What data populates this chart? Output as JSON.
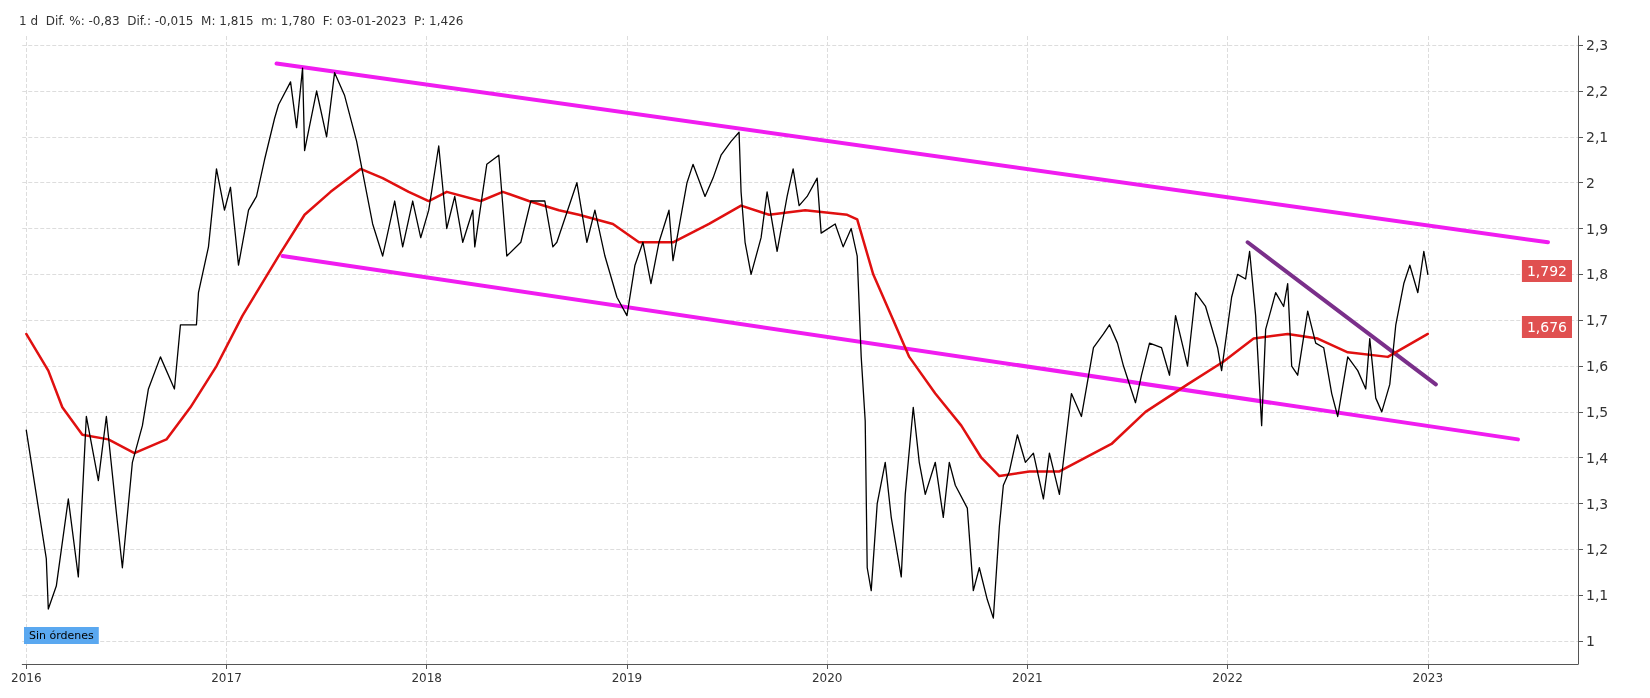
{
  "chart_data": {
    "type": "line",
    "title": "1 d  Dif. %: -0,83  Dif.: -0,015  M: 1,815  m: 1,780  F: 03-01-2023  P: 1,426",
    "xlim": [
      2015.98,
      2023.75
    ],
    "xticks": [
      2016,
      2017,
      2018,
      2019,
      2020,
      2021,
      2022,
      2023
    ],
    "ylim": [
      0.95,
      2.32
    ],
    "yticks": [
      {
        "value": 1,
        "label": "1"
      },
      {
        "value": 1.1,
        "label": "1,1"
      },
      {
        "value": 1.2,
        "label": "1,2"
      },
      {
        "value": 1.3,
        "label": "1,3"
      },
      {
        "value": 1.4,
        "label": "1,4"
      },
      {
        "value": 1.5,
        "label": "1,5"
      },
      {
        "value": 1.6,
        "label": "1,6"
      },
      {
        "value": 1.7,
        "label": "1,7"
      },
      {
        "value": 1.8,
        "label": "1,8"
      },
      {
        "value": 1.9,
        "label": "1,9"
      },
      {
        "value": 2,
        "label": "2"
      },
      {
        "value": 2.1,
        "label": "2,1"
      },
      {
        "value": 2.2,
        "label": "2,2"
      },
      {
        "value": 2.3,
        "label": "2,3"
      }
    ],
    "grid": true,
    "marker": "none",
    "line_style": "solid",
    "annotations": [
      "Sin órdenes",
      "1,792",
      "1,676"
    ],
    "series": [
      {
        "color": "#000000",
        "x": [
          2016.0,
          2016.05,
          2016.1,
          2016.11,
          2016.15,
          2016.21,
          2016.26,
          2016.3,
          2016.36,
          2016.4,
          2016.45,
          2016.48,
          2016.53,
          2016.58,
          2016.61,
          2016.67,
          2016.74,
          2016.77,
          2016.85,
          2016.86,
          2016.91,
          2016.95,
          2016.99,
          2017.02,
          2017.06,
          2017.11,
          2017.15,
          2017.19,
          2017.24,
          2017.26,
          2017.32,
          2017.35,
          2017.38,
          2017.39,
          2017.45,
          2017.5,
          2017.54,
          2017.59,
          2017.65,
          2017.69,
          2017.73,
          2017.78,
          2017.84,
          2017.88,
          2017.93,
          2017.97,
          2018.01,
          2018.06,
          2018.1,
          2018.14,
          2018.18,
          2018.23,
          2018.24,
          2018.3,
          2018.36,
          2018.4,
          2018.47,
          2018.52,
          2018.59,
          2018.63,
          2018.65,
          2018.75,
          2018.8,
          2018.84,
          2018.89,
          2018.95,
          2019.0,
          2019.04,
          2019.08,
          2019.12,
          2019.16,
          2019.21,
          2019.23,
          2019.3,
          2019.33,
          2019.39,
          2019.43,
          2019.47,
          2019.52,
          2019.56,
          2019.57,
          2019.59,
          2019.62,
          2019.67,
          2019.7,
          2019.75,
          2019.8,
          2019.83,
          2019.86,
          2019.9,
          2019.95,
          2019.97,
          2020.04,
          2020.08,
          2020.12,
          2020.15,
          2020.17,
          2020.19,
          2020.2,
          2020.22,
          2020.25,
          2020.29,
          2020.32,
          2020.37,
          2020.39,
          2020.43,
          2020.46,
          2020.49,
          2020.54,
          2020.58,
          2020.61,
          2020.64,
          2020.7,
          2020.73,
          2020.76,
          2020.8,
          2020.83,
          2020.86,
          2020.88,
          2020.91,
          2020.95,
          2020.99,
          2021.03,
          2021.08,
          2021.11,
          2021.16,
          2021.19,
          2021.22,
          2021.27,
          2021.33,
          2021.38,
          2021.41,
          2021.45,
          2021.48,
          2021.54,
          2021.57,
          2021.61,
          2021.67,
          2021.71,
          2021.74,
          2021.8,
          2021.84,
          2021.89,
          2021.95,
          2021.97,
          2022.02,
          2022.05,
          2022.09,
          2022.11,
          2022.14,
          2022.17,
          2022.19,
          2022.24,
          2022.28,
          2022.3,
          2022.32,
          2022.35,
          2022.4,
          2022.44,
          2022.48,
          2022.52,
          2022.55,
          2022.6,
          2022.65,
          2022.69,
          2022.71,
          2022.74,
          2022.77,
          2022.81,
          2022.84,
          2022.88,
          2022.91,
          2022.95,
          2022.98,
          2023.0
        ],
        "values": [
          1.46,
          1.32,
          1.18,
          1.07,
          1.12,
          1.31,
          1.14,
          1.49,
          1.35,
          1.49,
          1.28,
          1.16,
          1.39,
          1.47,
          1.55,
          1.62,
          1.55,
          1.69,
          1.69,
          1.76,
          1.86,
          2.03,
          1.94,
          1.99,
          1.82,
          1.94,
          1.97,
          2.05,
          2.14,
          2.17,
          2.22,
          2.12,
          2.25,
          2.07,
          2.2,
          2.1,
          2.24,
          2.19,
          2.09,
          2.0,
          1.91,
          1.84,
          1.96,
          1.86,
          1.96,
          1.88,
          1.94,
          2.08,
          1.9,
          1.97,
          1.87,
          1.94,
          1.86,
          2.04,
          2.06,
          1.84,
          1.87,
          1.96,
          1.96,
          1.86,
          1.87,
          2.0,
          1.87,
          1.94,
          1.84,
          1.75,
          1.71,
          1.82,
          1.87,
          1.78,
          1.87,
          1.94,
          1.83,
          2.0,
          2.04,
          1.97,
          2.01,
          2.06,
          2.09,
          2.11,
          1.98,
          1.87,
          1.8,
          1.88,
          1.98,
          1.85,
          1.97,
          2.03,
          1.95,
          1.97,
          2.01,
          1.89,
          1.91,
          1.86,
          1.9,
          1.84,
          1.62,
          1.48,
          1.16,
          1.11,
          1.3,
          1.39,
          1.27,
          1.14,
          1.32,
          1.51,
          1.39,
          1.32,
          1.39,
          1.27,
          1.39,
          1.34,
          1.29,
          1.11,
          1.16,
          1.09,
          1.05,
          1.25,
          1.34,
          1.37,
          1.45,
          1.39,
          1.41,
          1.31,
          1.41,
          1.32,
          1.43,
          1.54,
          1.49,
          1.64,
          1.67,
          1.69,
          1.65,
          1.6,
          1.52,
          1.58,
          1.65,
          1.64,
          1.58,
          1.71,
          1.6,
          1.76,
          1.73,
          1.64,
          1.59,
          1.75,
          1.8,
          1.79,
          1.85,
          1.71,
          1.47,
          1.68,
          1.76,
          1.73,
          1.78,
          1.6,
          1.58,
          1.72,
          1.65,
          1.64,
          1.54,
          1.49,
          1.62,
          1.59,
          1.55,
          1.66,
          1.53,
          1.5,
          1.56,
          1.69,
          1.78,
          1.82,
          1.76,
          1.85,
          1.8
        ]
      },
      {
        "color": "#e01010",
        "x": [
          2016.0,
          2016.11,
          2016.18,
          2016.28,
          2016.41,
          2016.54,
          2016.7,
          2016.82,
          2016.95,
          2017.08,
          2017.26,
          2017.39,
          2017.52,
          2017.67,
          2017.78,
          2017.91,
          2018.01,
          2018.1,
          2018.27,
          2018.38,
          2018.51,
          2018.66,
          2018.76,
          2018.93,
          2019.06,
          2019.23,
          2019.41,
          2019.57,
          2019.71,
          2019.89,
          2020.1,
          2020.15,
          2020.23,
          2020.32,
          2020.41,
          2020.54,
          2020.67,
          2020.77,
          2020.86,
          2021.01,
          2021.16,
          2021.42,
          2021.59,
          2021.8,
          2021.98,
          2022.13,
          2022.3,
          2022.45,
          2022.6,
          2022.8,
          2023.0
        ],
        "values": [
          1.67,
          1.59,
          1.51,
          1.45,
          1.44,
          1.41,
          1.44,
          1.51,
          1.6,
          1.71,
          1.84,
          1.93,
          1.98,
          2.03,
          2.01,
          1.98,
          1.96,
          1.98,
          1.96,
          1.98,
          1.96,
          1.94,
          1.93,
          1.91,
          1.87,
          1.87,
          1.91,
          1.95,
          1.93,
          1.94,
          1.93,
          1.92,
          1.8,
          1.71,
          1.62,
          1.54,
          1.47,
          1.4,
          1.36,
          1.37,
          1.37,
          1.43,
          1.5,
          1.56,
          1.61,
          1.66,
          1.67,
          1.66,
          1.63,
          1.62,
          1.67
        ]
      },
      {
        "color": "#f01cf0",
        "x": [
          2017.25,
          2023.6
        ],
        "values": [
          2.26,
          1.87
        ]
      },
      {
        "color": "#f01cf0",
        "x": [
          2017.28,
          2023.45
        ],
        "values": [
          1.84,
          1.44
        ]
      },
      {
        "color": "#7a2f8a",
        "x": [
          2022.1,
          2023.04
        ],
        "values": [
          1.87,
          1.56
        ]
      }
    ]
  }
}
